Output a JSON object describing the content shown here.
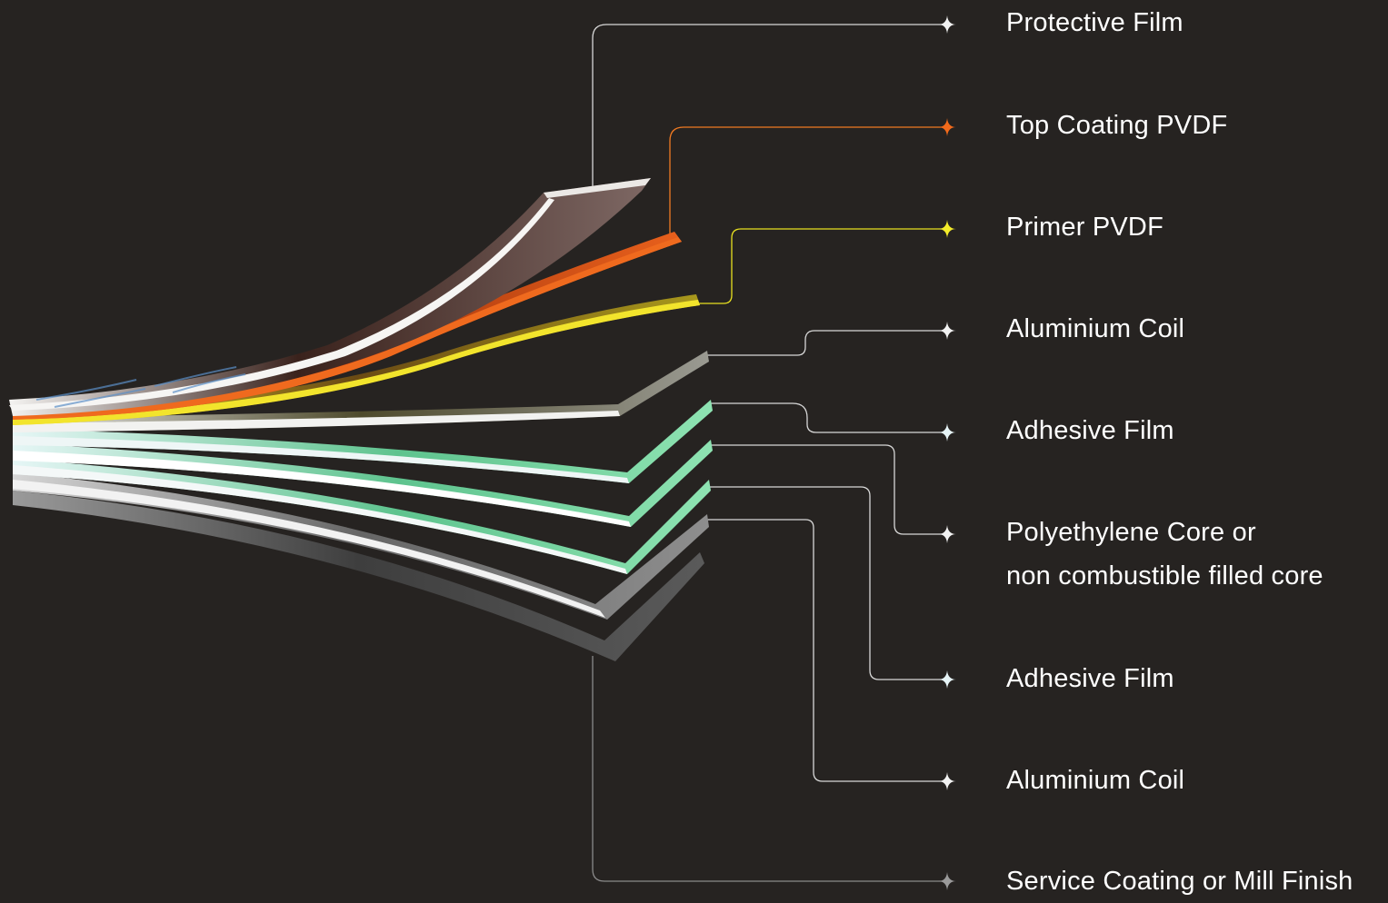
{
  "layers": [
    {
      "id": "protective-film",
      "lines": [
        "Protective Film"
      ],
      "leader_color": "#d8d8d8",
      "star_color": "#f2f2f2"
    },
    {
      "id": "top-coating",
      "lines": [
        "Top Coating PVDF"
      ],
      "leader_color": "#f07a22",
      "star_color": "#f26a1b"
    },
    {
      "id": "primer",
      "lines": [
        "Primer PVDF"
      ],
      "leader_color": "#e8e020",
      "star_color": "#f4ec2a"
    },
    {
      "id": "aluminium-coil-top",
      "lines": [
        "Aluminium Coil"
      ],
      "leader_color": "#d8d8d8",
      "star_color": "#f2f2f2"
    },
    {
      "id": "adhesive-film-top",
      "lines": [
        "Adhesive Film"
      ],
      "leader_color": "#d8d8d8",
      "star_color": "#e6f4f7"
    },
    {
      "id": "core",
      "lines": [
        "Polyethylene Core or",
        "non combustible filled core"
      ],
      "leader_color": "#d8d8d8",
      "star_color": "#f2f2f2"
    },
    {
      "id": "adhesive-film-bottom",
      "lines": [
        "Adhesive Film"
      ],
      "leader_color": "#d8d8d8",
      "star_color": "#e6f4f7"
    },
    {
      "id": "aluminium-coil-bottom",
      "lines": [
        "Aluminium Coil"
      ],
      "leader_color": "#d8d8d8",
      "star_color": "#f2f2f2"
    },
    {
      "id": "service-coating",
      "lines": [
        "Service Coating or Mill Finish"
      ],
      "leader_color": "#8a8a8a",
      "star_color": "#9a9a9a"
    }
  ],
  "colors": {
    "background": "#262321",
    "text": "#ffffff",
    "protective_film": "#e9e6e3",
    "top_coating": "#e8601c",
    "primer": "#ecd823",
    "aluminium": "#dedede",
    "adhesive": "#eaf6f9",
    "core": "#82d9a4",
    "service_coating": "#5a5a5a"
  }
}
